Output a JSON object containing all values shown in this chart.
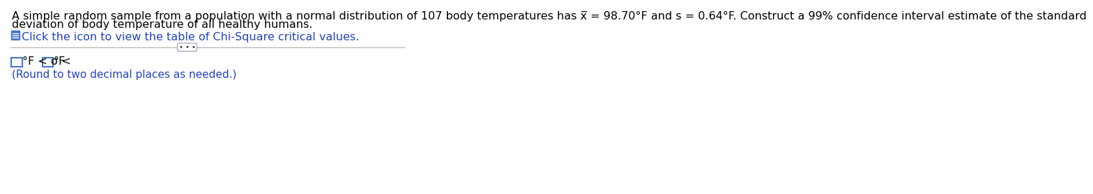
{
  "line1": "A simple random sample from a population with a normal distribution of 107 body temperatures has x̅ = 98.70°F and s = 0.64°F. Construct a 99% confidence interval estimate of the standard",
  "line2": "deviation of body temperature of all healthy humans.",
  "icon_text": "Click the icon to view the table of Chi-Square critical values.",
  "round_note": "(Round to two decimal places as needed.)",
  "divider_button_text": "• • •",
  "bg_color": "#ffffff",
  "text_color": "#000000",
  "blue_color": "#3355aa",
  "link_color": "#2244bb",
  "icon_color": "#4477cc",
  "box_border_color": "#4477cc",
  "divider_color": "#bbbbbb",
  "font_size_main": 11.5,
  "font_size_small": 11
}
